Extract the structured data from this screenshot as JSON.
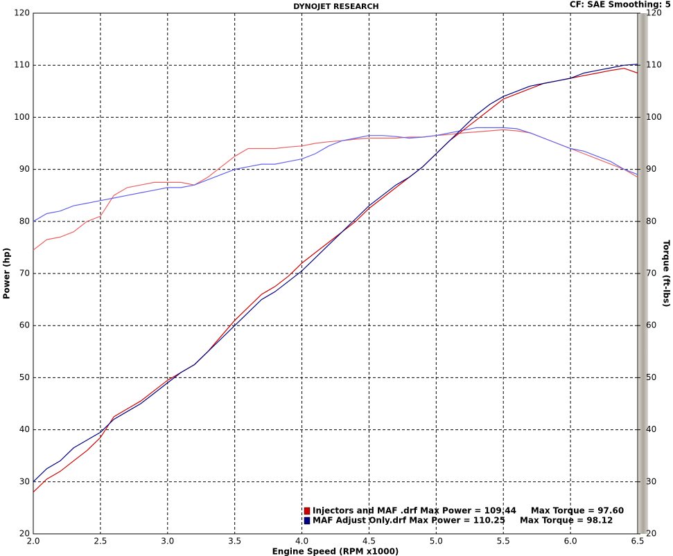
{
  "chart_data": {
    "type": "line",
    "title": "DYNOJET RESEARCH",
    "subtitle": "CF: SAE  Smoothing: 5",
    "x_label": "Engine Speed (RPM x1000)",
    "y_label": "Power (hp)",
    "y2_label": "Torque (ft-lbs)",
    "x": [
      2.0,
      2.1,
      2.2,
      2.3,
      2.4,
      2.5,
      2.6,
      2.7,
      2.8,
      2.9,
      3.0,
      3.1,
      3.2,
      3.3,
      3.4,
      3.5,
      3.6,
      3.7,
      3.8,
      3.9,
      4.0,
      4.1,
      4.2,
      4.3,
      4.4,
      4.5,
      4.6,
      4.7,
      4.8,
      4.9,
      5.0,
      5.1,
      5.2,
      5.3,
      5.4,
      5.5,
      5.6,
      5.7,
      5.8,
      5.9,
      6.0,
      6.1,
      6.2,
      6.3,
      6.4,
      6.5
    ],
    "series": [
      {
        "name": "Injectors and MAF .drf Max Power = 109.44     Max Torque = 97.60",
        "color": "#cc0000",
        "axis": "y",
        "values": [
          28,
          30.5,
          32,
          34,
          36,
          38.5,
          42.5,
          44,
          45.5,
          47.5,
          49.5,
          51,
          52.5,
          55,
          58,
          61,
          63.5,
          66,
          67.5,
          69.5,
          72,
          74,
          76,
          78,
          80,
          82.5,
          84.5,
          86.5,
          88.5,
          90.5,
          93,
          95.5,
          97.5,
          99.5,
          101.5,
          103.5,
          104.5,
          105.5,
          106.5,
          107,
          107.5,
          108,
          108.5,
          109,
          109.4,
          108.5
        ]
      },
      {
        "name": "MAF Adjust Only.drf Max Power = 110.25     Max Torque = 98.12",
        "color": "#000080",
        "axis": "y",
        "values": [
          30,
          32.5,
          34,
          36.5,
          38,
          39.5,
          42,
          43.5,
          45,
          47,
          49,
          51,
          52.5,
          55,
          57.5,
          60,
          62.5,
          65,
          66.5,
          68.5,
          70.5,
          73,
          75.5,
          78,
          80.5,
          83,
          85,
          87,
          88.5,
          90.5,
          93,
          95.5,
          98,
          100.5,
          102.5,
          104,
          105,
          106,
          106.5,
          107,
          107.5,
          108.5,
          109,
          109.5,
          110,
          110.2
        ]
      },
      {
        "color": "#ee6060",
        "axis": "y2",
        "values": [
          74.5,
          76.5,
          77,
          78,
          80,
          81,
          85,
          86.5,
          87,
          87.5,
          87.5,
          87.5,
          87,
          88.5,
          90.5,
          92.5,
          94,
          94,
          94,
          94.3,
          94.5,
          95,
          95.3,
          95.5,
          95.8,
          96,
          96,
          96,
          96.2,
          96.2,
          96.5,
          96.7,
          97,
          97.2,
          97.4,
          97.6,
          97.4,
          97,
          96,
          95,
          94,
          93,
          92,
          91,
          90,
          88.5
        ]
      },
      {
        "color": "#6060ee",
        "axis": "y2",
        "values": [
          80,
          81.5,
          82,
          83,
          83.5,
          84,
          84.5,
          85,
          85.5,
          86,
          86.5,
          86.5,
          87,
          88,
          89,
          90,
          90.5,
          91,
          91,
          91.5,
          92,
          93,
          94.5,
          95.5,
          96,
          96.5,
          96.5,
          96.3,
          96,
          96.2,
          96.5,
          97,
          97.5,
          98,
          98,
          98,
          97.8,
          97,
          96,
          95,
          94,
          93.5,
          92.5,
          91.5,
          90,
          89
        ]
      }
    ],
    "xlim": [
      2.0,
      6.5
    ],
    "xticks": [
      {
        "value": 2.0,
        "label": "2.0"
      },
      2.5,
      {
        "value": 3.0,
        "label": "3.0"
      },
      3.5,
      {
        "value": 4.0,
        "label": "4.0"
      },
      4.5,
      {
        "value": 5.0,
        "label": "5.0"
      },
      5.5,
      {
        "value": 6.0,
        "label": "6.0"
      },
      6.5
    ],
    "ylim": [
      20,
      120
    ],
    "yticks": [
      20,
      30,
      40,
      50,
      60,
      70,
      80,
      90,
      100,
      110,
      120
    ],
    "y2lim": [
      20,
      120
    ],
    "y2ticks": [
      20,
      30,
      40,
      50,
      60,
      70,
      80,
      90,
      100,
      110,
      120
    ],
    "grid": true
  }
}
